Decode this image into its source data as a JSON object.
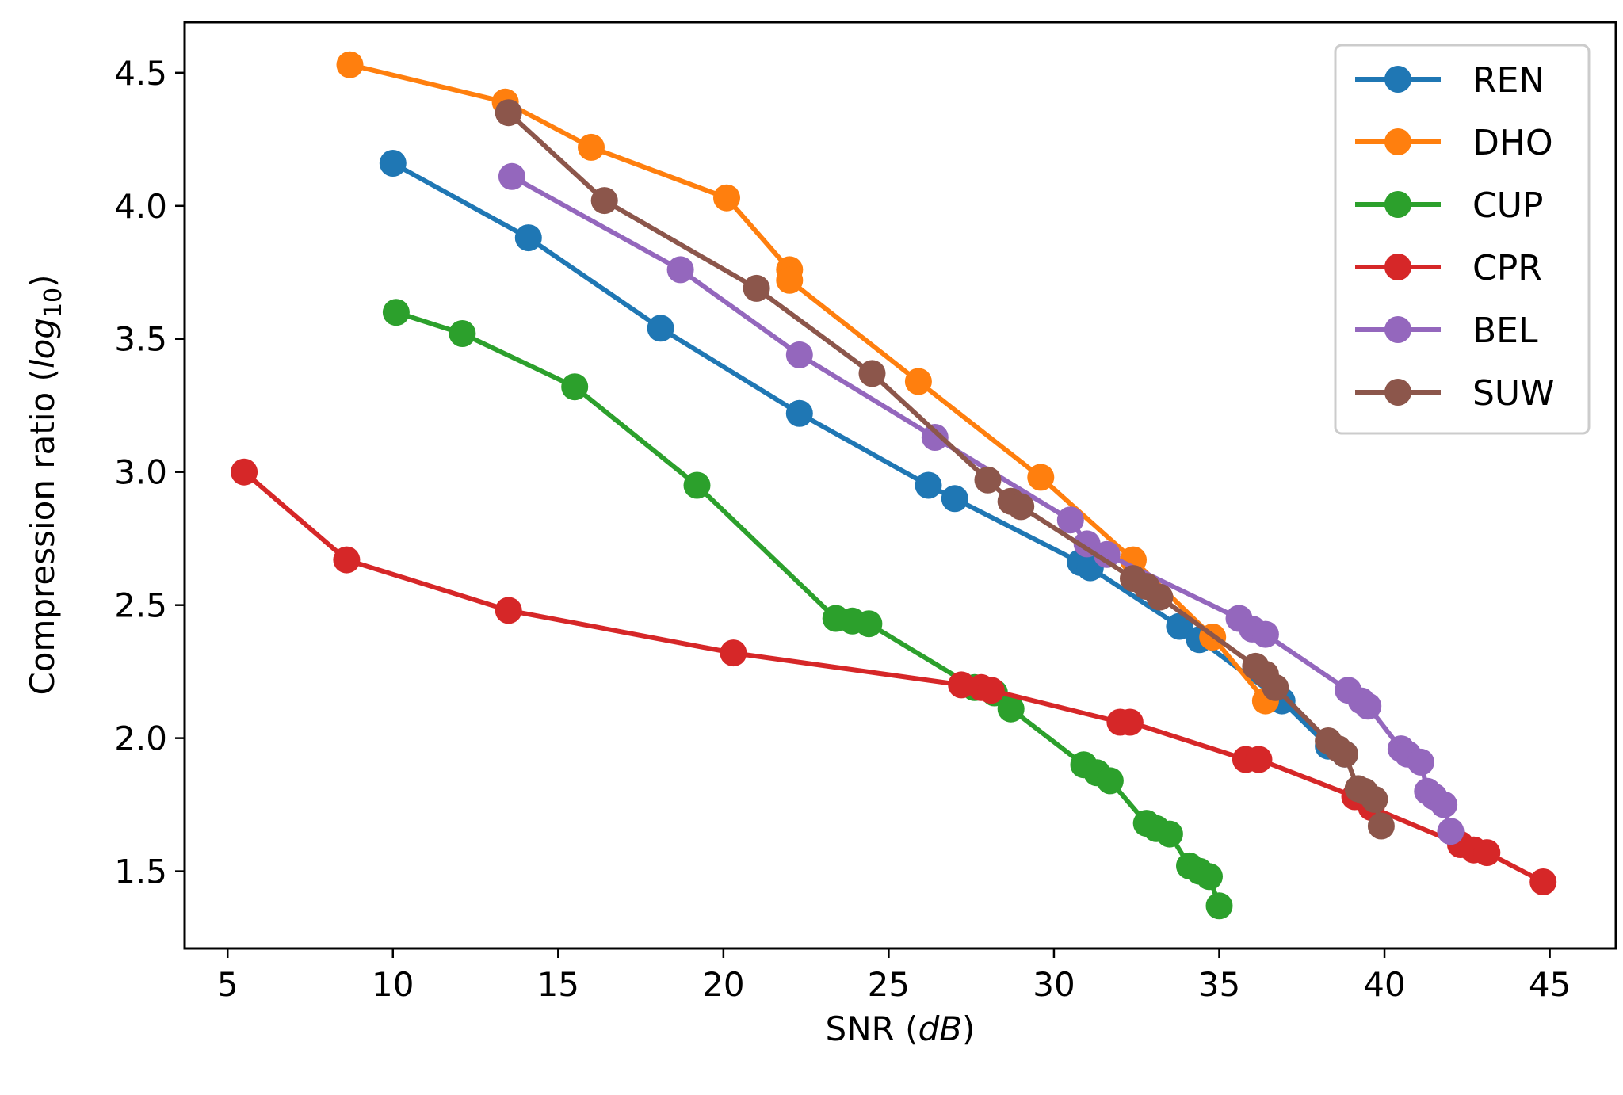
{
  "chart_data": {
    "type": "line",
    "title": "",
    "xlabel": "SNR",
    "xlabel_unit": "dB",
    "ylabel": "Compression ratio",
    "ylabel_unit_base": "log",
    "ylabel_unit_sub": "10",
    "xlim": [
      3.7,
      47.0
    ],
    "ylim": [
      1.21,
      4.69
    ],
    "x_ticks": [
      5,
      10,
      15,
      20,
      25,
      30,
      35,
      40,
      45
    ],
    "y_ticks": [
      1.5,
      2.0,
      2.5,
      3.0,
      3.5,
      4.0,
      4.5
    ],
    "x_tick_labels": [
      "5",
      "10",
      "15",
      "20",
      "25",
      "30",
      "35",
      "40",
      "45"
    ],
    "y_tick_labels": [
      "1.5",
      "2.0",
      "2.5",
      "3.0",
      "3.5",
      "4.0",
      "4.5"
    ],
    "grid": false,
    "legend_position": "top-right",
    "series": [
      {
        "name": "REN",
        "color": "#1f77b4",
        "points": [
          [
            10.0,
            4.16
          ],
          [
            14.1,
            3.88
          ],
          [
            18.1,
            3.54
          ],
          [
            22.3,
            3.22
          ],
          [
            26.2,
            2.95
          ],
          [
            27.0,
            2.9
          ],
          [
            30.8,
            2.66
          ],
          [
            31.1,
            2.64
          ],
          [
            33.8,
            2.42
          ],
          [
            34.4,
            2.37
          ],
          [
            36.9,
            2.14
          ],
          [
            38.3,
            1.97
          ],
          [
            38.8,
            1.94
          ]
        ]
      },
      {
        "name": "DHO",
        "color": "#ff7f0e",
        "points": [
          [
            8.7,
            4.53
          ],
          [
            13.4,
            4.39
          ],
          [
            16.0,
            4.22
          ],
          [
            20.1,
            4.03
          ],
          [
            22.0,
            3.76
          ],
          [
            22.0,
            3.72
          ],
          [
            25.9,
            3.34
          ],
          [
            29.6,
            2.98
          ],
          [
            32.4,
            2.67
          ],
          [
            34.8,
            2.38
          ],
          [
            36.4,
            2.14
          ]
        ]
      },
      {
        "name": "CUP",
        "color": "#2ca02c",
        "points": [
          [
            10.1,
            3.6
          ],
          [
            12.1,
            3.52
          ],
          [
            15.5,
            3.32
          ],
          [
            19.2,
            2.95
          ],
          [
            23.4,
            2.45
          ],
          [
            23.9,
            2.44
          ],
          [
            24.4,
            2.43
          ],
          [
            27.6,
            2.19
          ],
          [
            28.2,
            2.17
          ],
          [
            28.7,
            2.11
          ],
          [
            30.9,
            1.9
          ],
          [
            31.3,
            1.87
          ],
          [
            31.7,
            1.84
          ],
          [
            32.8,
            1.68
          ],
          [
            33.1,
            1.66
          ],
          [
            33.5,
            1.64
          ],
          [
            34.1,
            1.52
          ],
          [
            34.4,
            1.5
          ],
          [
            34.7,
            1.48
          ],
          [
            35.0,
            1.37
          ]
        ]
      },
      {
        "name": "CPR",
        "color": "#d62728",
        "points": [
          [
            5.5,
            3.0
          ],
          [
            8.6,
            2.67
          ],
          [
            13.5,
            2.48
          ],
          [
            20.3,
            2.32
          ],
          [
            27.2,
            2.2
          ],
          [
            27.8,
            2.19
          ],
          [
            28.1,
            2.18
          ],
          [
            32.0,
            2.06
          ],
          [
            32.3,
            2.06
          ],
          [
            35.8,
            1.92
          ],
          [
            36.2,
            1.92
          ],
          [
            39.1,
            1.78
          ],
          [
            39.6,
            1.74
          ],
          [
            42.3,
            1.6
          ],
          [
            42.7,
            1.58
          ],
          [
            43.1,
            1.57
          ],
          [
            44.8,
            1.46
          ]
        ]
      },
      {
        "name": "BEL",
        "color": "#9467bd",
        "points": [
          [
            13.6,
            4.11
          ],
          [
            18.7,
            3.76
          ],
          [
            22.3,
            3.44
          ],
          [
            26.4,
            3.13
          ],
          [
            30.5,
            2.82
          ],
          [
            31.0,
            2.73
          ],
          [
            31.6,
            2.69
          ],
          [
            35.6,
            2.45
          ],
          [
            36.0,
            2.41
          ],
          [
            36.4,
            2.39
          ],
          [
            38.9,
            2.18
          ],
          [
            39.3,
            2.14
          ],
          [
            39.5,
            2.12
          ],
          [
            40.5,
            1.96
          ],
          [
            40.7,
            1.94
          ],
          [
            41.1,
            1.91
          ],
          [
            41.3,
            1.8
          ],
          [
            41.5,
            1.78
          ],
          [
            41.8,
            1.75
          ],
          [
            42.0,
            1.65
          ]
        ]
      },
      {
        "name": "SUW",
        "color": "#8c564b",
        "points": [
          [
            13.5,
            4.35
          ],
          [
            16.4,
            4.02
          ],
          [
            21.0,
            3.69
          ],
          [
            24.5,
            3.37
          ],
          [
            28.0,
            2.97
          ],
          [
            28.7,
            2.89
          ],
          [
            29.0,
            2.87
          ],
          [
            32.4,
            2.6
          ],
          [
            32.8,
            2.57
          ],
          [
            33.2,
            2.53
          ],
          [
            36.1,
            2.27
          ],
          [
            36.4,
            2.24
          ],
          [
            36.7,
            2.19
          ],
          [
            38.3,
            1.99
          ],
          [
            38.6,
            1.96
          ],
          [
            38.8,
            1.94
          ],
          [
            39.2,
            1.81
          ],
          [
            39.4,
            1.8
          ],
          [
            39.7,
            1.77
          ],
          [
            39.9,
            1.67
          ]
        ]
      }
    ]
  }
}
